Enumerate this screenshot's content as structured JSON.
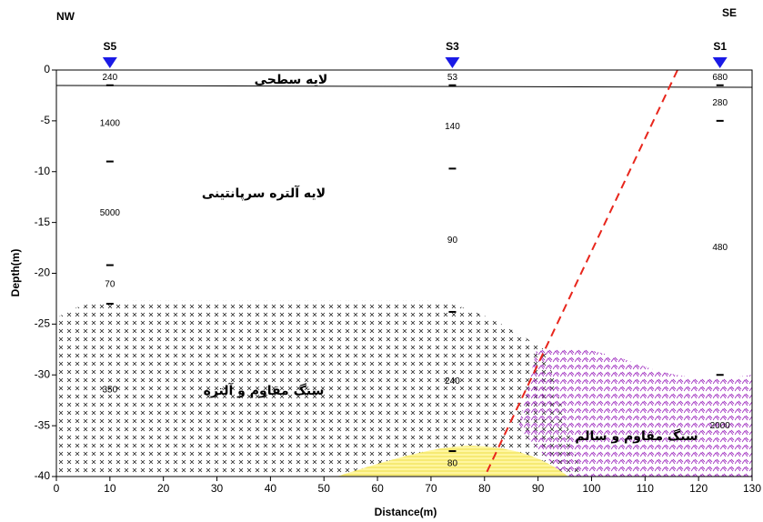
{
  "chart_data": {
    "type": "section",
    "corner_labels": [
      "NW",
      "SE"
    ],
    "corner_color": "#e8261c",
    "xlabel": "Distance(m)",
    "ylabel": "Depth(m)",
    "xlim": [
      0,
      130
    ],
    "ylim": [
      -40,
      0
    ],
    "xticks": [
      0,
      10,
      20,
      30,
      40,
      50,
      60,
      70,
      80,
      90,
      100,
      110,
      120,
      130
    ],
    "yticks": [
      0,
      -5,
      -10,
      -15,
      -20,
      -25,
      -30,
      -35,
      -40
    ],
    "marker_color": "#1a1ae6",
    "zones": [
      {
        "label": "لایه سطحی"
      },
      {
        "label": "لایه آلتره سرپانتینی"
      },
      {
        "label": "سنگ مقاوم و آلتره"
      },
      {
        "label": "سنگ مقاوم و سالم"
      }
    ],
    "soundings": [
      {
        "name": "S5",
        "x": 10,
        "boundaries": [
          -1.5,
          -9,
          -19.2,
          -23
        ],
        "values": [
          240,
          1400,
          5000,
          70,
          350
        ]
      },
      {
        "name": "S3",
        "x": 74,
        "boundaries": [
          -1.5,
          -9.7,
          -23.8,
          -37.5
        ],
        "values": [
          53,
          140,
          90,
          240,
          80
        ]
      },
      {
        "name": "S1",
        "x": 124,
        "boundaries": [
          -1.5,
          -5,
          -30
        ],
        "values": [
          680,
          280,
          480,
          2000
        ]
      }
    ]
  }
}
